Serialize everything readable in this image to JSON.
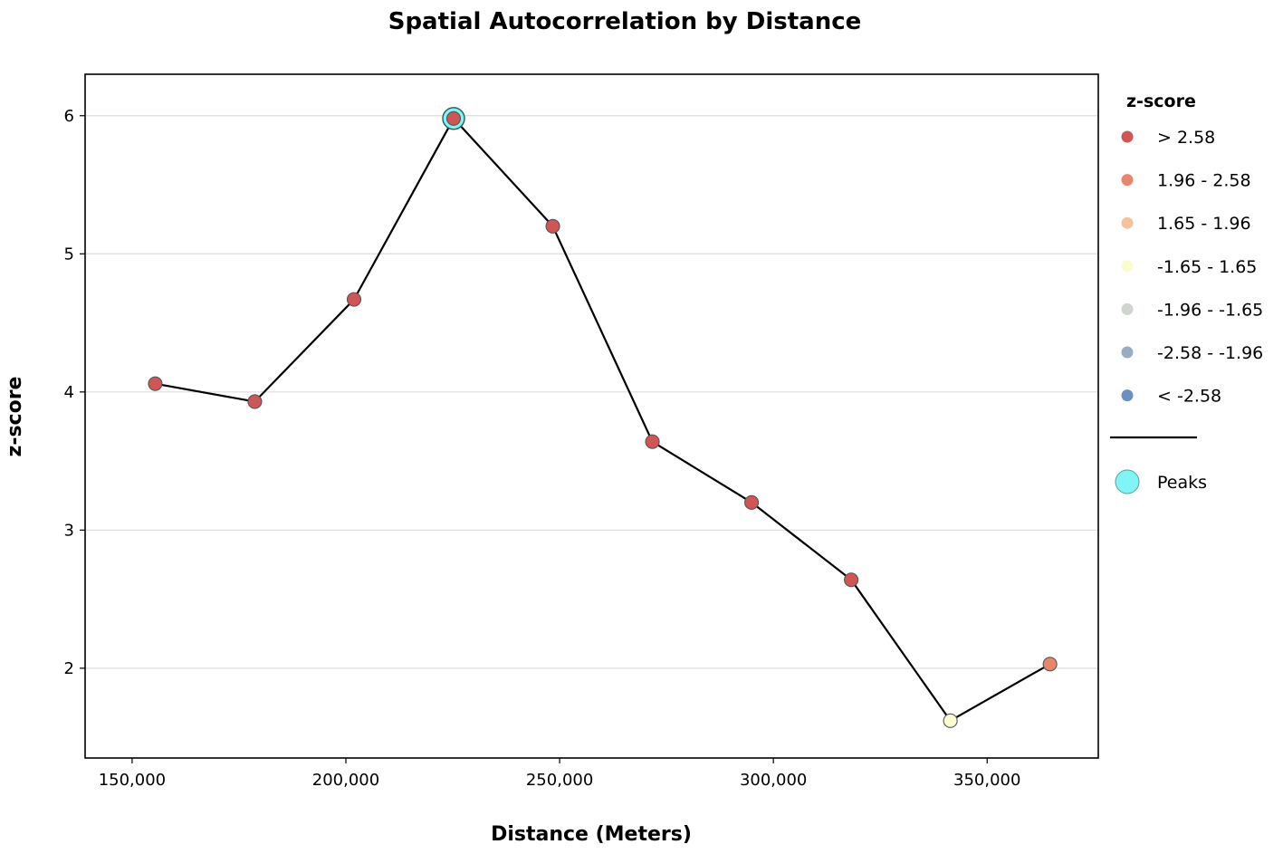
{
  "chart_data": {
    "type": "line",
    "title": "Spatial Autocorrelation by Distance",
    "xlabel": "Distance (Meters)",
    "ylabel": "z-score",
    "xlim": [
      139000,
      376000
    ],
    "ylim": [
      1.35,
      6.3
    ],
    "x_ticks": [
      150000,
      200000,
      250000,
      300000,
      350000
    ],
    "x_tick_labels": [
      "150,000",
      "200,000",
      "250,000",
      "300,000",
      "350,000"
    ],
    "y_ticks": [
      2,
      3,
      4,
      5,
      6
    ],
    "y_tick_labels": [
      "2",
      "3",
      "4",
      "5",
      "6"
    ],
    "grid": "horizontal",
    "legend_placement": "right, outside",
    "line_color": "#000000",
    "points": [
      {
        "x": 155400,
        "y": 4.06,
        "class": 0
      },
      {
        "x": 178700,
        "y": 3.93,
        "class": 0
      },
      {
        "x": 201900,
        "y": 4.67,
        "class": 0
      },
      {
        "x": 225200,
        "y": 5.98,
        "class": 0,
        "peak": true
      },
      {
        "x": 248400,
        "y": 5.2,
        "class": 0
      },
      {
        "x": 271700,
        "y": 3.64,
        "class": 0
      },
      {
        "x": 294900,
        "y": 3.2,
        "class": 0
      },
      {
        "x": 318200,
        "y": 2.64,
        "class": 0
      },
      {
        "x": 341400,
        "y": 1.62,
        "class": 3
      },
      {
        "x": 364700,
        "y": 2.03,
        "class": 1
      }
    ],
    "legend": {
      "title": "z-score",
      "entries": [
        {
          "label": "> 2.58",
          "color": "#d05555"
        },
        {
          "label": "1.96 - 2.58",
          "color": "#e8866a"
        },
        {
          "label": "1.65 - 1.96",
          "color": "#f3c49c"
        },
        {
          "label": "-1.65 - 1.65",
          "color": "#fbfbd0"
        },
        {
          "label": "-1.96 - -1.65",
          "color": "#cfd5cf"
        },
        {
          "label": "-2.58 - -1.96",
          "color": "#98adc2"
        },
        {
          "label": "< -2.58",
          "color": "#6a8fc2"
        }
      ],
      "peaks_label": "Peaks",
      "peak_color": "#7ff5f5"
    }
  }
}
